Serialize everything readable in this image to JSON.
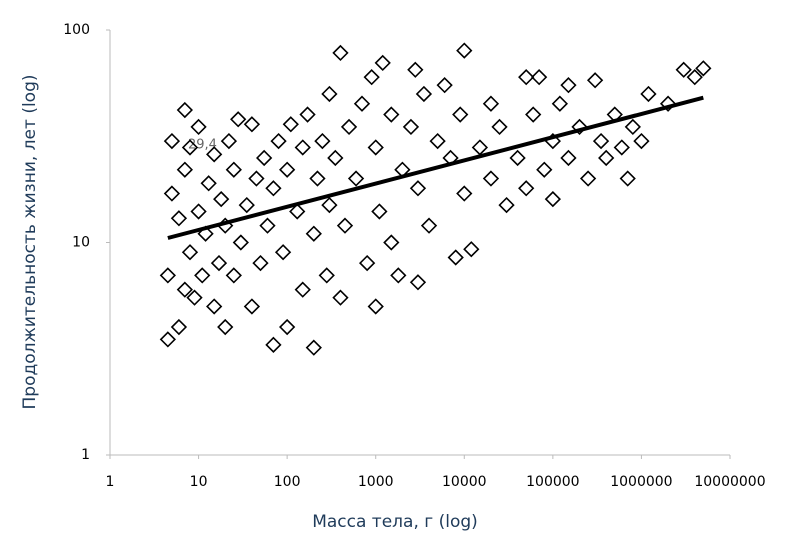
{
  "chart_data": {
    "type": "scatter",
    "x_label": "Масса тела, г (log)",
    "y_label": "Продолжительность жизни, лет  (log)",
    "annotation": "29,4",
    "x_log": true,
    "y_log": true,
    "xlim": [
      1,
      10000000
    ],
    "ylim": [
      1,
      100
    ],
    "xticks": [
      1,
      10,
      100,
      1000,
      10000,
      100000,
      1000000,
      10000000
    ],
    "yticks": [
      1,
      10,
      100
    ],
    "x": [
      4.5,
      4.5,
      5,
      5,
      6,
      6,
      7,
      7,
      7,
      8,
      8,
      9,
      10,
      10,
      11,
      12,
      13,
      15,
      15,
      17,
      18,
      20,
      20,
      22,
      25,
      25,
      28,
      30,
      35,
      40,
      40,
      45,
      50,
      55,
      60,
      70,
      70,
      80,
      90,
      100,
      100,
      110,
      130,
      150,
      150,
      170,
      200,
      200,
      220,
      250,
      280,
      300,
      300,
      350,
      400,
      400,
      450,
      500,
      600,
      700,
      800,
      900,
      1000,
      1000,
      1100,
      1200,
      1500,
      1500,
      1800,
      2000,
      2500,
      2800,
      3000,
      3000,
      3500,
      4000,
      5000,
      6000,
      7000,
      8000,
      9000,
      10000,
      10000,
      12000,
      15000,
      20000,
      20000,
      25000,
      30000,
      40000,
      50000,
      50000,
      60000,
      70000,
      80000,
      100000,
      100000,
      120000,
      150000,
      150000,
      200000,
      250000,
      300000,
      350000,
      400000,
      500000,
      600000,
      700000,
      800000,
      1000000,
      1200000,
      2000000,
      3000000,
      4000000,
      5000000
    ],
    "series": [
      {
        "color": "#000000",
        "values": [
          3.5,
          7,
          30,
          17,
          4,
          13,
          42,
          6,
          22,
          9,
          28,
          5.5,
          35,
          14,
          7,
          11,
          19,
          26,
          5,
          8,
          16,
          4,
          12,
          30,
          7,
          22,
          38,
          10,
          15,
          36,
          5,
          20,
          8,
          25,
          12,
          3.3,
          18,
          30,
          9,
          4,
          22,
          36,
          14,
          6,
          28,
          40,
          3.2,
          11,
          20,
          30,
          7,
          50,
          15,
          25,
          78,
          5.5,
          12,
          35,
          20,
          45,
          8,
          60,
          5,
          28,
          14,
          70,
          40,
          10,
          7,
          22,
          35,
          65,
          6.5,
          18,
          50,
          12,
          30,
          55,
          25,
          8.5,
          40,
          80,
          17,
          9.3,
          28,
          45,
          20,
          35,
          15,
          25,
          60,
          18,
          40,
          60,
          22,
          30,
          16,
          45,
          55,
          25,
          35,
          20,
          58,
          30,
          25,
          40,
          28,
          20,
          35,
          30,
          50,
          45,
          65,
          60,
          66
        ]
      }
    ],
    "trendline": {
      "color": "#000000",
      "x": [
        4.5,
        5000000
      ],
      "y": [
        10.5,
        48
      ]
    }
  }
}
